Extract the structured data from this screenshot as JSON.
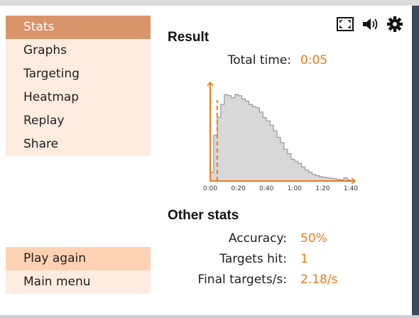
{
  "sidebar": {
    "items": [
      {
        "label": "Stats",
        "active": true
      },
      {
        "label": "Graphs",
        "active": false
      },
      {
        "label": "Targeting",
        "active": false
      },
      {
        "label": "Heatmap",
        "active": false
      },
      {
        "label": "Replay",
        "active": false
      },
      {
        "label": "Share",
        "active": false
      }
    ],
    "bottom_items": [
      {
        "label": "Play again"
      },
      {
        "label": "Main menu"
      }
    ]
  },
  "toolbar": {
    "icons": [
      "fullscreen-icon",
      "speaker-icon",
      "gear-icon"
    ]
  },
  "result": {
    "title": "Result",
    "total_time_label": "Total time:",
    "total_time_value": "0:05"
  },
  "chart_data": {
    "type": "area",
    "title": "",
    "xlabel": "",
    "ylabel": "",
    "x_tick_labels": [
      "0:00",
      "0:20",
      "0:40",
      "1:00",
      "1:20",
      "1:40"
    ],
    "xlim": [
      0,
      100
    ],
    "x": [
      0,
      2.5,
      5,
      7.5,
      10,
      12.5,
      15,
      17.5,
      20,
      22.5,
      25,
      27.5,
      30,
      32.5,
      35,
      37.5,
      40,
      42.5,
      45,
      47.5,
      50,
      52.5,
      55,
      57.5,
      60,
      62.5,
      65,
      67.5,
      70,
      72.5,
      75,
      77.5,
      80,
      82.5,
      85,
      87.5,
      90,
      92.5,
      95,
      97.5
    ],
    "values": [
      8,
      42,
      58,
      70,
      79,
      78,
      76,
      79,
      78,
      75,
      73,
      70,
      68,
      67,
      63,
      58,
      55,
      51,
      46,
      40,
      35,
      29,
      25,
      20,
      18,
      16,
      13,
      10,
      8,
      6,
      5,
      4,
      3.5,
      3,
      2.5,
      2,
      1.5,
      1,
      3,
      1
    ],
    "marker_x": 5,
    "marker_style": "dashed",
    "grid": false,
    "colors": {
      "fill": "#d8d8d8",
      "line": "#8a8a8a",
      "axis": "#ef7a1a"
    }
  },
  "other_stats": {
    "title": "Other stats",
    "rows": [
      {
        "label": "Accuracy:",
        "value": "50%"
      },
      {
        "label": "Targets hit:",
        "value": "1"
      },
      {
        "label": "Final targets/s:",
        "value": "2.18/s"
      }
    ]
  },
  "colors": {
    "accent": "#ef7a1a",
    "menu_active": "#d9946a",
    "menu_bg": "#ffece0",
    "menu_highlight": "#ffd2b4"
  }
}
